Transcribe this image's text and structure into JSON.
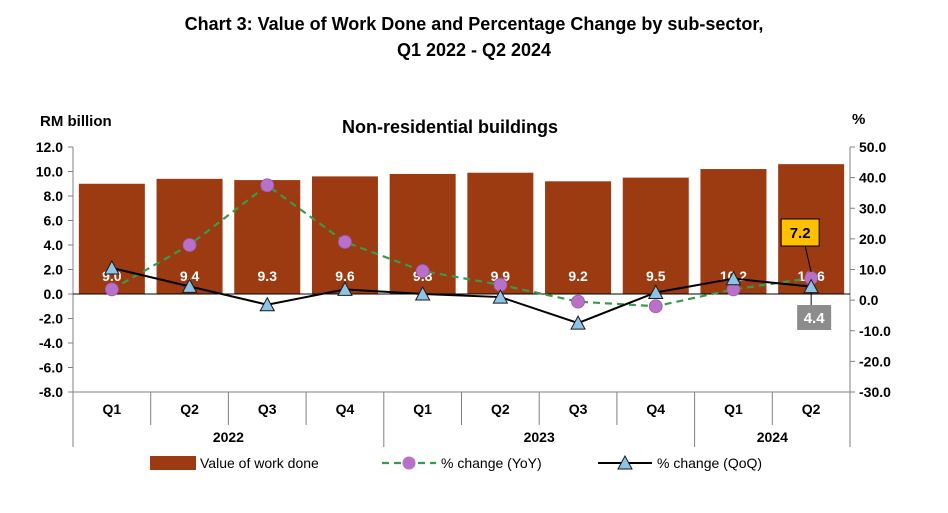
{
  "title_line1": "Chart 3: Value of Work Done and Percentage Change by sub-sector,",
  "title_line2": "Q1 2022 - Q2 2024",
  "chart_data": {
    "type": "bar",
    "subtitle": "Non-residential buildings",
    "y_left_label": "RM billion",
    "y_right_label": "%",
    "y_left_ticks": [
      "12.0",
      "10.0",
      "8.0",
      "6.0",
      "4.0",
      "2.0",
      "0.0",
      "-2.0",
      "-4.0",
      "-6.0",
      "-8.0"
    ],
    "y_right_ticks": [
      "50.0",
      "40.0",
      "30.0",
      "20.0",
      "10.0",
      "0.0",
      "-10.0",
      "-20.0",
      "-30.0"
    ],
    "ylim_left": [
      -8,
      12
    ],
    "ylim_right": [
      -30,
      50
    ],
    "categories": [
      "Q1",
      "Q2",
      "Q3",
      "Q4",
      "Q1",
      "Q2",
      "Q3",
      "Q4",
      "Q1",
      "Q2"
    ],
    "years": [
      {
        "label": "2022",
        "span": 4
      },
      {
        "label": "2023",
        "span": 4
      },
      {
        "label": "2024",
        "span": 2
      }
    ],
    "series": [
      {
        "name": "Value of  work done",
        "kind": "bar",
        "axis": "left",
        "color": "#9C3A12",
        "values": [
          9.0,
          9.4,
          9.3,
          9.6,
          9.8,
          9.9,
          9.2,
          9.5,
          10.2,
          10.6
        ],
        "labels": [
          "9.0",
          "9.4",
          "9.3",
          "9.6",
          "9.8",
          "9.9",
          "9.2",
          "9.5",
          "10.2",
          "10.6"
        ]
      },
      {
        "name": "% change (YoY)",
        "kind": "dashed-line",
        "axis": "right",
        "color": "#3A9A4C",
        "marker_color": "#B870C8",
        "values": [
          3.5,
          18.0,
          37.5,
          19.0,
          9.5,
          5.0,
          -0.5,
          -2.0,
          3.5,
          7.2
        ]
      },
      {
        "name": "% change (QoQ)",
        "kind": "line",
        "axis": "right",
        "color": "#000000",
        "marker_color": "#8EC3E8",
        "values": [
          10.5,
          4.5,
          -1.5,
          3.5,
          2.0,
          1.0,
          -7.5,
          2.5,
          7.0,
          4.4
        ]
      }
    ],
    "callouts": [
      {
        "text": "7.2",
        "bg": "#FFC000"
      },
      {
        "text": "4.4",
        "bg": "#8C8C8C"
      }
    ]
  }
}
